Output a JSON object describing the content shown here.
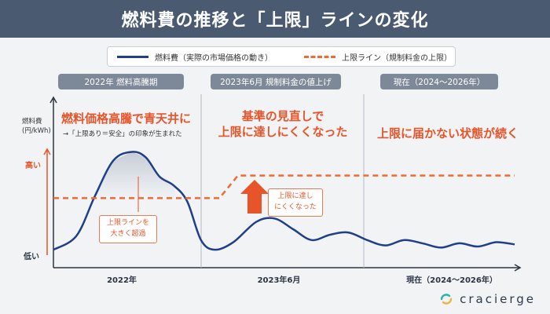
{
  "header": {
    "title": "燃料費の推移と「上限」ラインの変化"
  },
  "legend": {
    "market_label": "燃料費（実際の市場価格の動き）",
    "cap_label": "上限ライン（規制料金の上限）"
  },
  "phases": [
    {
      "label": "2022年 燃料高騰期"
    },
    {
      "label": "2023年6月 規制料金の値上げ"
    },
    {
      "label": "現在（2024〜2026年）"
    }
  ],
  "headlines": [
    {
      "text": "燃料価格高騰で青天井に"
    },
    {
      "text": "基準の見直しで\n上限に達しにくくなった"
    },
    {
      "text": "上限に届かない状態が続く"
    }
  ],
  "subnote": "→「上限あり＝安全」の印象が生まれた",
  "callouts": {
    "over_cap": "上限ラインを\n大きく超過",
    "hard_to_reach": "上限に達し\nにくくなった"
  },
  "brand": {
    "name": "cracierge"
  },
  "colors": {
    "header": "#4a5a70",
    "market_line": "#1f3f8a",
    "cap_line": "#f06a33",
    "accent": "#e8542a"
  },
  "chart_data": {
    "type": "line",
    "ylabel": "燃料費\n(円/kWh)",
    "y_ticks": [
      "低い",
      "高い"
    ],
    "x_ticks": [
      "2022年",
      "2023年6月",
      "現在（2024〜2026年）"
    ],
    "x_range": [
      0,
      100
    ],
    "y_range": [
      0,
      100
    ],
    "series": [
      {
        "name": "燃料費（実際の市場価格の動き）",
        "style": "solid",
        "points": [
          [
            0,
            5
          ],
          [
            5,
            18
          ],
          [
            9,
            55
          ],
          [
            13,
            88
          ],
          [
            17,
            96
          ],
          [
            20,
            91
          ],
          [
            23,
            73
          ],
          [
            26,
            65
          ],
          [
            29,
            50
          ],
          [
            32,
            14
          ],
          [
            35,
            5
          ],
          [
            39,
            12
          ],
          [
            44,
            31
          ],
          [
            48,
            34
          ],
          [
            52,
            24
          ],
          [
            56,
            14
          ],
          [
            60,
            19
          ],
          [
            64,
            21
          ],
          [
            68,
            14
          ],
          [
            72,
            9
          ],
          [
            76,
            14
          ],
          [
            80,
            11
          ],
          [
            84,
            7
          ],
          [
            88,
            11
          ],
          [
            92,
            8
          ],
          [
            96,
            12
          ],
          [
            100,
            10
          ]
        ]
      },
      {
        "name": "上限ライン（規制料金の上限）",
        "style": "dashed",
        "points": [
          [
            0,
            53
          ],
          [
            36,
            53
          ],
          [
            40,
            74
          ],
          [
            100,
            74
          ]
        ]
      }
    ],
    "grid": false
  }
}
